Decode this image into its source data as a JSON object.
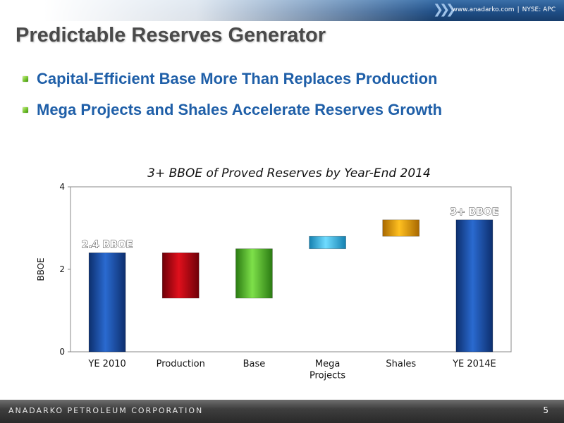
{
  "header": {
    "links": "www.anadarko.com",
    "separator": "|",
    "ticker": "NYSE: APC",
    "title": "Predictable Reserves Generator"
  },
  "bullets": [
    "Capital-Efficient Base More Than Replaces Production",
    "Mega Projects and Shales Accelerate Reserves Growth"
  ],
  "footer": {
    "company": "ANADARKO PETROLEUM CORPORATION",
    "page": "5"
  },
  "chart_data": {
    "type": "bar",
    "subtype": "waterfall",
    "title": "3+ BBOE of Proved Reserves by Year-End 2014",
    "xlabel": "",
    "ylabel": "BBOE",
    "ylim": [
      0,
      4
    ],
    "yticks": [
      "0",
      "2",
      "4"
    ],
    "grid": false,
    "legend": "none",
    "categories": [
      "YE 2010",
      "Production",
      "Base",
      "Mega\nProjects",
      "Shales",
      "YE 2014E"
    ],
    "bars": [
      {
        "category": "YE 2010",
        "low": 0,
        "high": 2.4,
        "color": "#1a4fa0",
        "label": "2.4 BBOE"
      },
      {
        "category": "Production",
        "low": 1.3,
        "high": 2.4,
        "color": "#c0101a",
        "label": ""
      },
      {
        "category": "Base",
        "low": 1.3,
        "high": 2.5,
        "color": "#4fbf2a",
        "label": ""
      },
      {
        "category": "Mega Projects",
        "low": 2.5,
        "high": 2.8,
        "color": "#35b8e6",
        "label": ""
      },
      {
        "category": "Shales",
        "low": 2.8,
        "high": 3.2,
        "color": "#e8a410",
        "label": ""
      },
      {
        "category": "YE 2014E",
        "low": 0,
        "high": 3.2,
        "color": "#1a4fa0",
        "label": "3+ BBOE"
      }
    ]
  }
}
